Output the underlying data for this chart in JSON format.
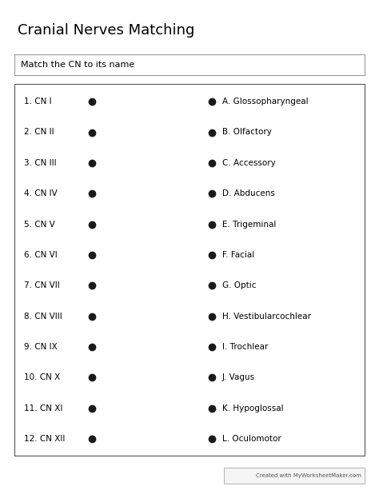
{
  "title": "Cranial Nerves Matching",
  "instruction": "Match the CN to its name",
  "left_items": [
    "1. CN I",
    "2. CN II",
    "3. CN III",
    "4. CN IV",
    "5. CN V",
    "6. CN VI",
    "7. CN VII",
    "8. CN VIII",
    "9. CN IX",
    "10. CN X",
    "11. CN XI",
    "12. CN XII"
  ],
  "right_items": [
    "A. Glossopharyngeal",
    "B. Olfactory",
    "C. Accessory",
    "D. Abducens",
    "E. Trigeminal",
    "F. Facial",
    "G. Optic",
    "H. Vestibularcochlear",
    "I. Trochlear",
    "J. Vagus",
    "K. Hypoglossal",
    "L. Oculomotor"
  ],
  "bg_color": "#ffffff",
  "text_color": "#000000",
  "dot_color": "#1a1a1a",
  "title_fontsize": 13,
  "instruction_fontsize": 8,
  "item_fontsize": 7.5,
  "footer_text": "Created with MyWorksheetMaker.com",
  "footer_fontsize": 5
}
